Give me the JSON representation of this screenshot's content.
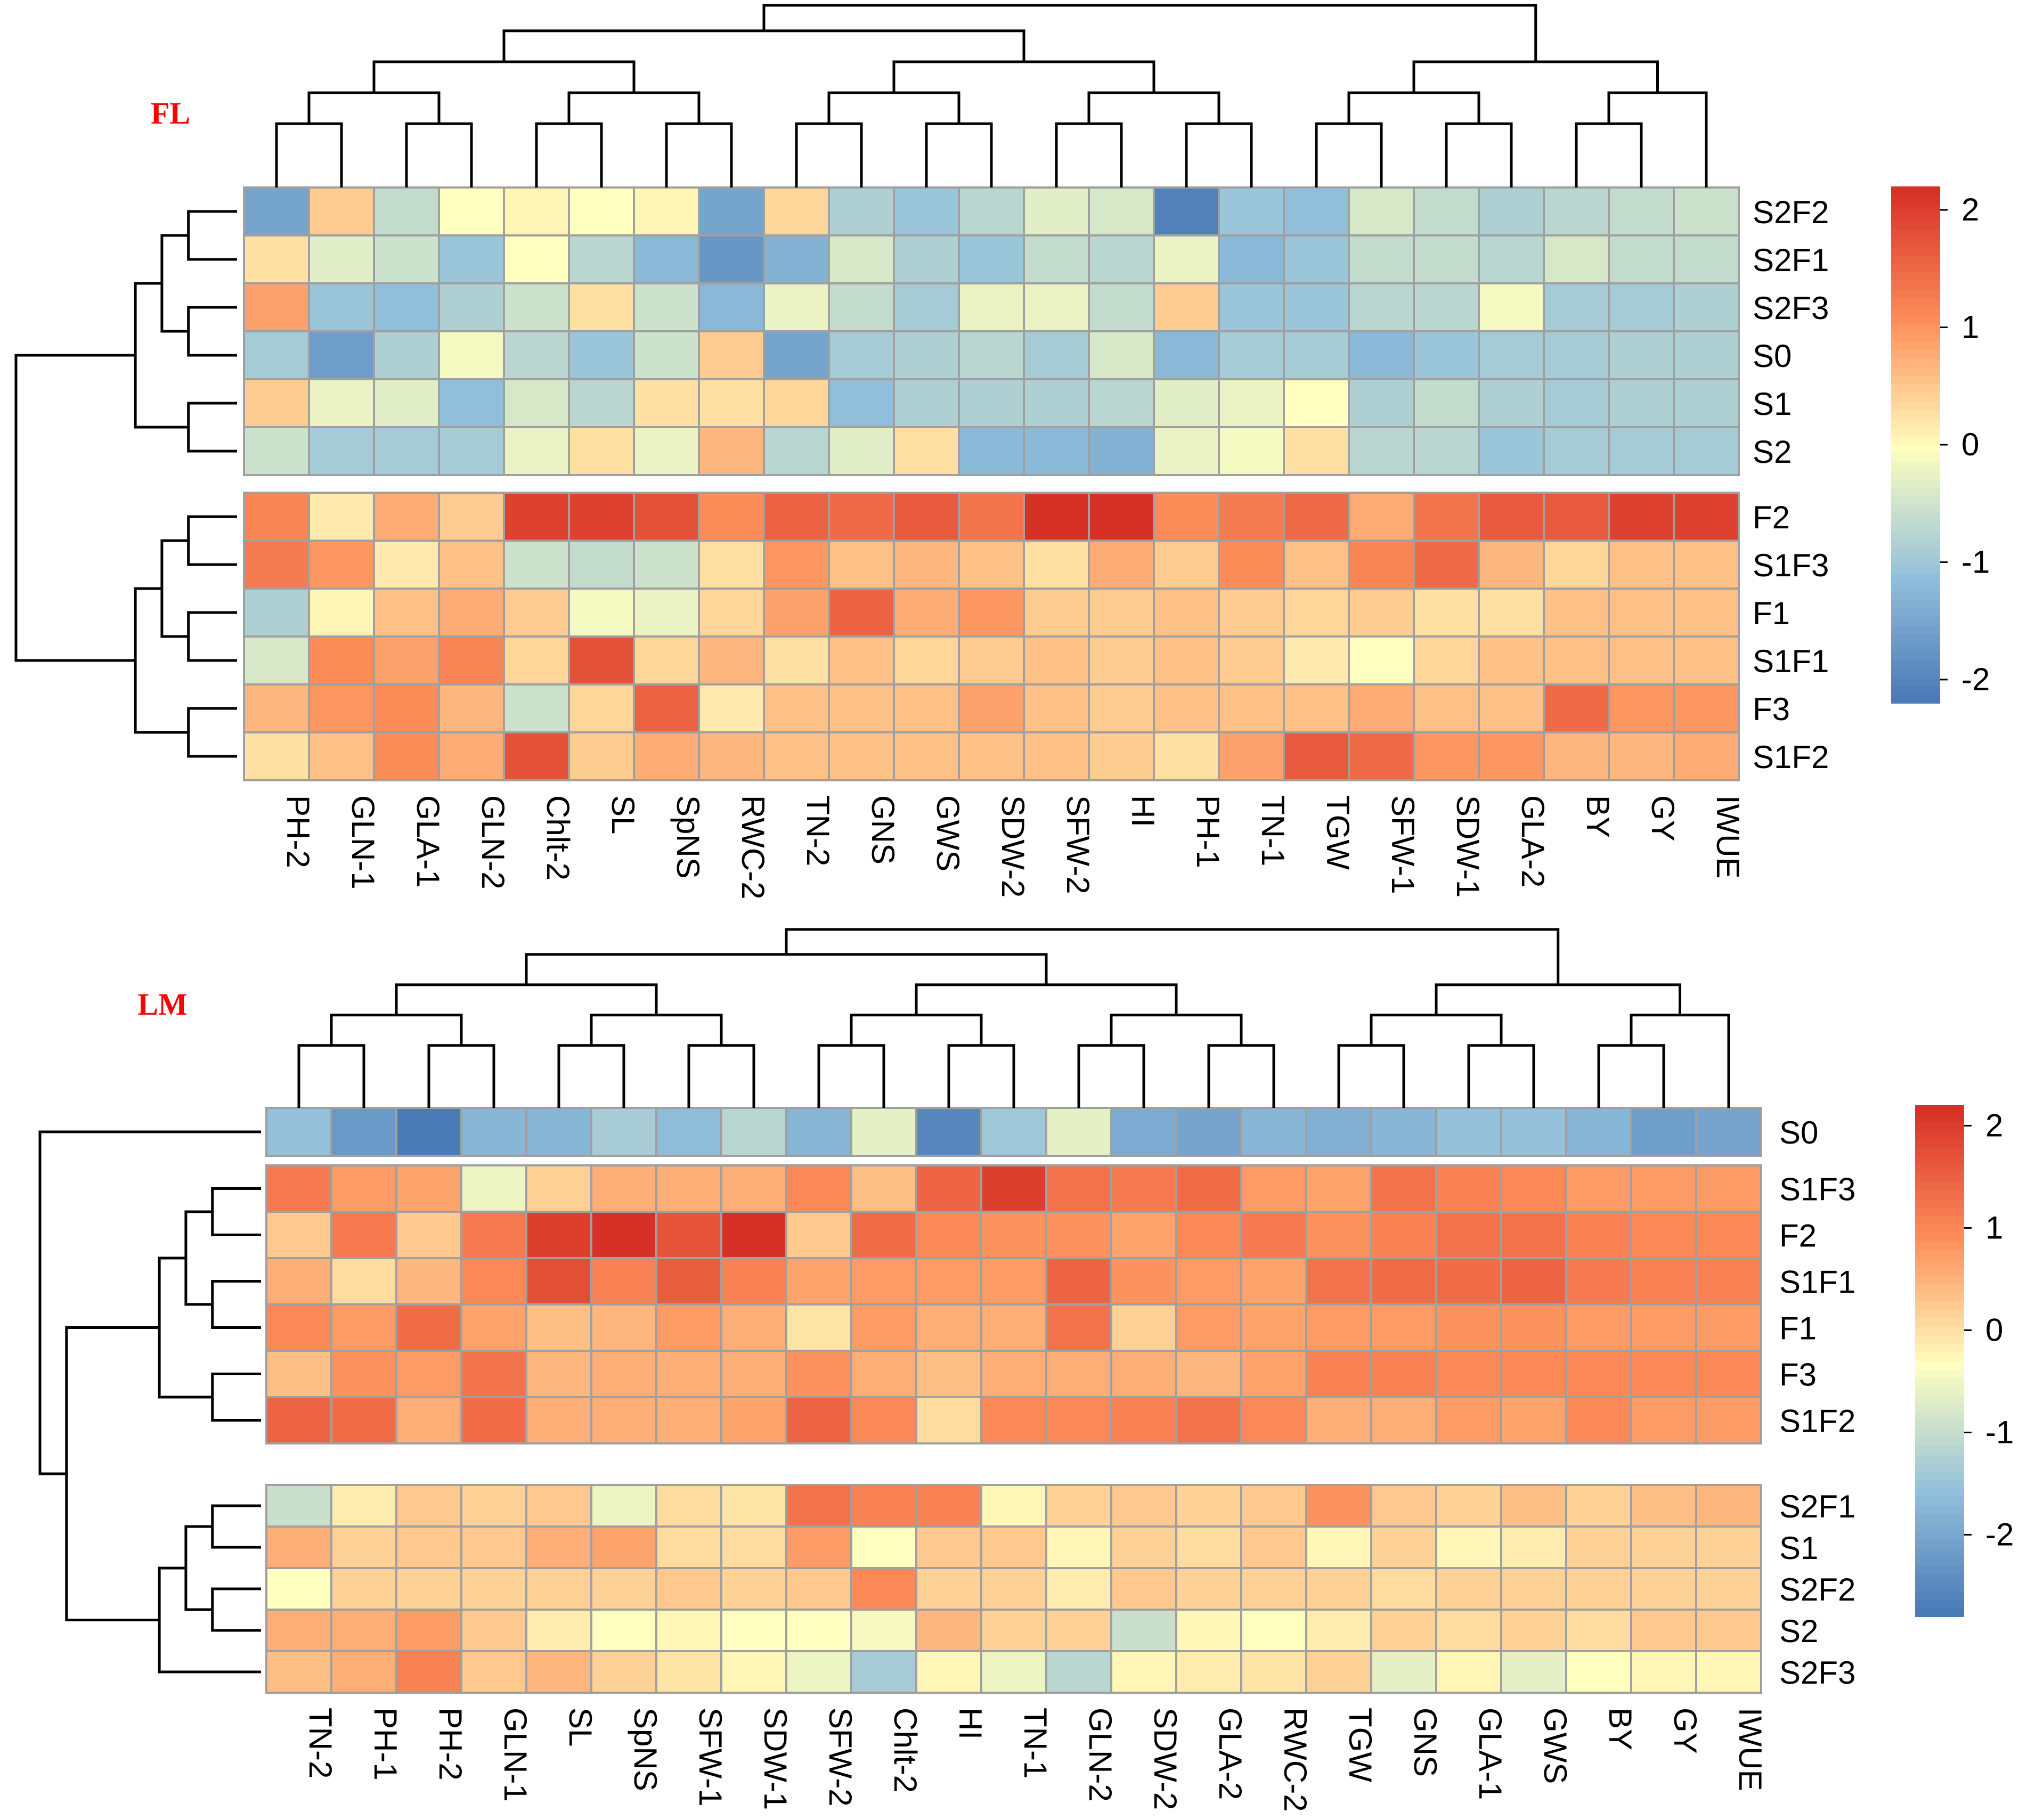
{
  "colors": {
    "low": "#4575b4",
    "mid": "#ffffbf",
    "high": "#d73027",
    "cell_border": "#a0a0a0",
    "dendrogram": "#000000",
    "panel_label": "#ff0000"
  },
  "chart_data": [
    {
      "type": "heatmap",
      "panel_label": "FL",
      "columns": [
        "PH-2",
        "GLN-1",
        "GLA-1",
        "GLN-2",
        "Chlt-2",
        "SL",
        "SpNS",
        "RWC-2",
        "TN-2",
        "GNS",
        "GWS",
        "SDW-2",
        "SFW-2",
        "HI",
        "PH-1",
        "TN-1",
        "TGW",
        "SFW-1",
        "SDW-1",
        "GLA-2",
        "BY",
        "GY",
        "IWUE"
      ],
      "rows": [
        "S2F2",
        "S2F1",
        "S2F3",
        "S0",
        "S1",
        "S2",
        "F2",
        "S1F3",
        "F1",
        "S1F1",
        "F3",
        "S1F2"
      ],
      "row_groups": [
        6,
        6
      ],
      "values": [
        [
          -1.5,
          0.5,
          -0.6,
          0.0,
          0.1,
          0.0,
          0.1,
          -1.5,
          0.4,
          -0.8,
          -1.0,
          -0.7,
          -0.3,
          -0.4,
          -2.0,
          -1.0,
          -1.1,
          -0.4,
          -0.6,
          -0.8,
          -0.7,
          -0.6,
          -0.5
        ],
        [
          0.3,
          -0.3,
          -0.5,
          -1.0,
          0.0,
          -0.7,
          -1.2,
          -1.7,
          -1.3,
          -0.4,
          -0.8,
          -1.0,
          -0.6,
          -0.7,
          -0.2,
          -1.2,
          -1.0,
          -0.6,
          -0.6,
          -0.7,
          -0.4,
          -0.6,
          -0.6
        ],
        [
          0.9,
          -1.0,
          -1.1,
          -0.8,
          -0.5,
          0.3,
          -0.5,
          -1.2,
          -0.2,
          -0.6,
          -0.9,
          -0.2,
          -0.2,
          -0.6,
          0.5,
          -1.0,
          -1.0,
          -0.7,
          -0.7,
          -0.1,
          -0.9,
          -0.9,
          -0.8
        ],
        [
          -0.9,
          -1.6,
          -0.8,
          -0.1,
          -0.7,
          -1.0,
          -0.5,
          0.5,
          -1.5,
          -0.9,
          -0.8,
          -0.7,
          -0.9,
          -0.4,
          -1.2,
          -0.9,
          -0.9,
          -1.2,
          -1.0,
          -0.9,
          -0.9,
          -0.8,
          -0.8
        ],
        [
          0.5,
          -0.2,
          -0.3,
          -1.1,
          -0.4,
          -0.7,
          0.3,
          0.3,
          0.4,
          -1.1,
          -0.8,
          -0.8,
          -0.8,
          -0.7,
          -0.3,
          -0.2,
          0.0,
          -0.8,
          -0.6,
          -0.8,
          -0.9,
          -0.8,
          -0.8
        ],
        [
          -0.5,
          -0.9,
          -0.9,
          -0.9,
          -0.2,
          0.3,
          -0.2,
          0.7,
          -0.7,
          -0.3,
          0.3,
          -1.2,
          -1.2,
          -1.3,
          -0.2,
          -0.1,
          0.3,
          -0.7,
          -0.7,
          -1.0,
          -0.9,
          -0.9,
          -0.9
        ],
        [
          1.2,
          0.2,
          0.8,
          0.5,
          2.0,
          2.0,
          1.8,
          1.1,
          1.6,
          1.5,
          1.7,
          1.4,
          2.3,
          2.3,
          1.1,
          1.3,
          1.5,
          0.8,
          1.4,
          1.7,
          1.7,
          2.0,
          2.0
        ],
        [
          1.3,
          1.0,
          0.2,
          0.6,
          -0.5,
          -0.6,
          -0.5,
          0.3,
          1.0,
          0.6,
          0.7,
          0.6,
          0.3,
          0.8,
          0.5,
          1.1,
          0.6,
          1.2,
          1.5,
          0.7,
          0.4,
          0.6,
          0.6
        ],
        [
          -0.8,
          0.1,
          0.6,
          0.8,
          0.5,
          -0.1,
          -0.2,
          0.4,
          0.9,
          1.6,
          0.8,
          1.0,
          0.5,
          0.5,
          0.6,
          0.5,
          0.4,
          0.5,
          0.3,
          0.3,
          0.6,
          0.6,
          0.6
        ],
        [
          -0.4,
          1.1,
          0.9,
          1.2,
          0.4,
          1.8,
          0.4,
          0.7,
          0.3,
          0.6,
          0.4,
          0.5,
          0.6,
          0.5,
          0.6,
          0.5,
          0.2,
          0.0,
          0.4,
          0.6,
          0.6,
          0.6,
          0.6
        ],
        [
          0.7,
          1.0,
          1.1,
          0.7,
          -0.5,
          0.4,
          1.6,
          0.2,
          0.6,
          0.6,
          0.6,
          0.9,
          0.6,
          0.5,
          0.6,
          0.6,
          0.6,
          0.8,
          0.6,
          0.6,
          1.5,
          1.0,
          1.0
        ],
        [
          0.3,
          0.6,
          1.1,
          0.8,
          1.8,
          0.5,
          0.8,
          0.7,
          0.6,
          0.6,
          0.6,
          0.6,
          0.6,
          0.5,
          0.3,
          0.9,
          1.7,
          1.5,
          1.0,
          1.0,
          0.7,
          0.7,
          0.8
        ]
      ],
      "color_scale": {
        "ticks": [
          2,
          1,
          0,
          -1,
          -2
        ],
        "min": -2.2,
        "max": 2.2
      }
    },
    {
      "type": "heatmap",
      "panel_label": "LM",
      "columns": [
        "TN-2",
        "PH-1",
        "PH-2",
        "GLN-1",
        "SL",
        "SpNS",
        "SFW-1",
        "SDW-1",
        "SFW-2",
        "Chlt-2",
        "HI",
        "TN-1",
        "GLN-2",
        "SDW-2",
        "GLA-2",
        "RWC-2",
        "TGW",
        "GNS",
        "GLA-1",
        "GWS",
        "BY",
        "GY",
        "IWUE"
      ],
      "rows": [
        "S0",
        "S1F3",
        "F2",
        "S1F1",
        "F1",
        "F3",
        "S1F2",
        "S2F1",
        "S1",
        "S2F2",
        "S2",
        "S2F3"
      ],
      "row_groups": [
        1,
        6,
        5
      ],
      "values": [
        [
          -1.5,
          -2.2,
          -2.7,
          -1.7,
          -1.7,
          -1.3,
          -1.6,
          -1.1,
          -1.7,
          -0.6,
          -2.5,
          -1.4,
          -0.6,
          -1.9,
          -2.0,
          -1.7,
          -1.8,
          -1.7,
          -1.5,
          -1.5,
          -1.7,
          -2.1,
          -2.0
        ],
        [
          1.2,
          0.8,
          0.7,
          -0.5,
          0.2,
          0.6,
          0.6,
          0.6,
          1.0,
          0.4,
          1.5,
          2.0,
          1.3,
          1.2,
          1.4,
          0.8,
          0.7,
          1.3,
          1.1,
          1.0,
          0.8,
          0.8,
          0.8
        ],
        [
          0.3,
          1.2,
          0.3,
          1.2,
          2.0,
          2.2,
          1.7,
          2.4,
          0.3,
          1.4,
          1.0,
          0.9,
          0.9,
          0.7,
          1.0,
          1.2,
          0.9,
          1.1,
          1.3,
          1.3,
          1.1,
          1.0,
          1.0
        ],
        [
          0.6,
          0.1,
          0.5,
          1.0,
          1.8,
          1.1,
          1.6,
          1.1,
          0.7,
          0.8,
          0.8,
          0.8,
          1.5,
          0.9,
          0.8,
          0.7,
          1.3,
          1.4,
          1.4,
          1.5,
          1.2,
          1.1,
          1.1
        ],
        [
          1.0,
          0.8,
          1.4,
          0.7,
          0.4,
          0.5,
          0.8,
          0.6,
          0.0,
          0.8,
          0.6,
          0.6,
          1.3,
          0.2,
          0.8,
          0.7,
          0.8,
          0.8,
          0.9,
          0.9,
          0.8,
          0.8,
          0.8
        ],
        [
          0.4,
          0.9,
          0.8,
          1.3,
          0.5,
          0.6,
          0.6,
          0.6,
          0.9,
          0.6,
          0.4,
          0.6,
          0.6,
          0.6,
          0.5,
          0.7,
          1.1,
          1.1,
          1.0,
          1.0,
          1.0,
          1.0,
          1.0
        ],
        [
          1.5,
          1.4,
          0.6,
          1.4,
          0.6,
          0.6,
          0.6,
          0.7,
          1.5,
          1.0,
          0.1,
          1.0,
          1.0,
          1.1,
          1.3,
          1.0,
          0.6,
          0.6,
          0.8,
          0.7,
          1.0,
          0.8,
          0.8
        ]
      ],
      "values_lower": [
        [
          -0.9,
          -0.1,
          0.3,
          0.2,
          0.3,
          -0.5,
          0.1,
          0.0,
          1.3,
          1.1,
          1.1,
          -0.2,
          0.2,
          0.3,
          0.2,
          0.3,
          0.9,
          0.3,
          0.2,
          0.4,
          0.2,
          0.4,
          0.5
        ],
        [
          0.6,
          0.2,
          0.3,
          0.3,
          0.6,
          0.7,
          0.1,
          0.1,
          0.8,
          -0.3,
          0.3,
          0.3,
          -0.2,
          0.2,
          0.1,
          0.3,
          -0.2,
          0.2,
          -0.2,
          -0.1,
          0.2,
          0.2,
          0.2
        ],
        [
          -0.3,
          0.2,
          0.2,
          0.2,
          0.2,
          0.2,
          0.3,
          0.2,
          0.3,
          1.0,
          0.2,
          0.2,
          -0.1,
          0.3,
          0.2,
          0.2,
          0.2,
          0.1,
          0.2,
          0.2,
          0.2,
          0.2,
          0.2
        ],
        [
          0.6,
          0.6,
          0.8,
          0.3,
          -0.1,
          -0.3,
          -0.2,
          -0.3,
          -0.3,
          -0.4,
          0.5,
          0.2,
          0.2,
          -0.9,
          -0.2,
          -0.3,
          -0.1,
          0.2,
          0.1,
          0.2,
          0.1,
          0.3,
          0.3
        ],
        [
          0.4,
          0.6,
          1.1,
          0.3,
          0.5,
          0.2,
          0.0,
          -0.2,
          -0.5,
          -1.3,
          -0.2,
          -0.5,
          -1.1,
          -0.2,
          -0.1,
          0.0,
          0.2,
          -0.6,
          -0.2,
          -0.6,
          -0.3,
          -0.2,
          -0.2
        ]
      ],
      "color_scale": {
        "ticks": [
          2,
          1,
          0,
          -1,
          -2
        ],
        "min": -2.8,
        "max": 2.2
      }
    }
  ]
}
